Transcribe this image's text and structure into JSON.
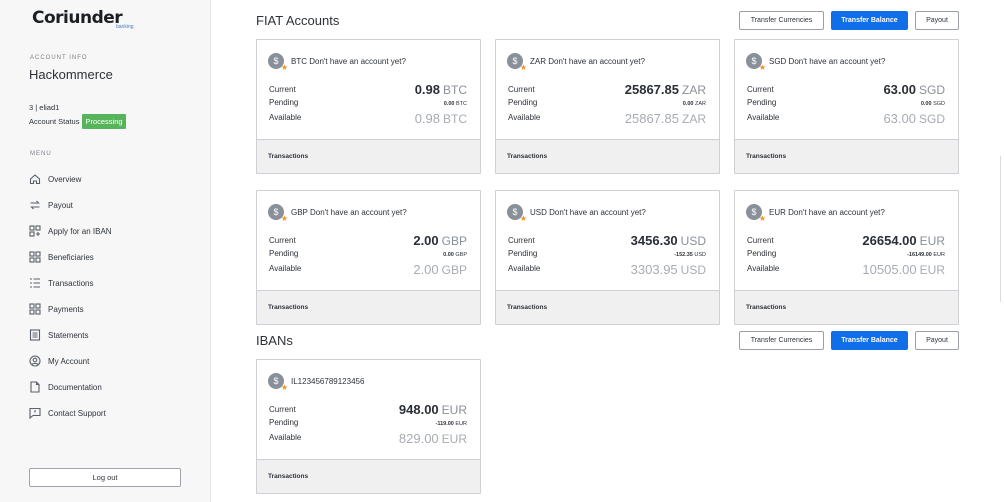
{
  "brand": {
    "logo": "Coriunder",
    "logo_sub": "banking"
  },
  "sidebar": {
    "account_info_label": "ACCOUNT INFO",
    "account_name": "Hackommerce",
    "account_id": "3 | eliad1",
    "account_status_label": "Account Status",
    "account_status": "Processing",
    "menu_label": "MENU",
    "menu": [
      {
        "label": "Overview",
        "icon": "home-icon"
      },
      {
        "label": "Payout",
        "icon": "transfer-arrows-icon"
      },
      {
        "label": "Apply for an IBAN",
        "icon": "grid-plus-icon"
      },
      {
        "label": "Beneficiaries",
        "icon": "grid-icon"
      },
      {
        "label": "Transactions",
        "icon": "list-icon"
      },
      {
        "label": "Payments",
        "icon": "grid-icon"
      },
      {
        "label": "Statements",
        "icon": "document-list-icon"
      },
      {
        "label": "My Account",
        "icon": "user-circle-icon"
      },
      {
        "label": "Documentation",
        "icon": "document-icon"
      },
      {
        "label": "Contact Support",
        "icon": "chat-icon"
      }
    ],
    "logout": "Log out"
  },
  "fiat": {
    "title": "FIAT Accounts",
    "buttons": {
      "transfer_currencies": "Transfer Currencies",
      "transfer_balance": "Transfer Balance",
      "payout": "Payout"
    },
    "labels": {
      "current": "Current",
      "pending": "Pending",
      "available": "Available",
      "transactions": "Transactions"
    },
    "cards": [
      {
        "title": "BTC Don't have an account yet?",
        "current": "0.98",
        "pending": "0.00",
        "available": "0.98",
        "currency": "BTC"
      },
      {
        "title": "ZAR Don't have an account yet?",
        "current": "25867.85",
        "pending": "0.00",
        "available": "25867.85",
        "currency": "ZAR"
      },
      {
        "title": "SGD Don't have an account yet?",
        "current": "63.00",
        "pending": "0.00",
        "available": "63.00",
        "currency": "SGD"
      },
      {
        "title": "GBP Don't have an account yet?",
        "current": "2.00",
        "pending": "0.00",
        "available": "2.00",
        "currency": "GBP"
      },
      {
        "title": "USD Don't have an account yet?",
        "current": "3456.30",
        "pending": "-152.35",
        "available": "3303.95",
        "currency": "USD"
      },
      {
        "title": "EUR Don't have an account yet?",
        "current": "26654.00",
        "pending": "-16149.00",
        "available": "10505.00",
        "currency": "EUR"
      }
    ]
  },
  "ibans": {
    "title": "IBANs",
    "buttons": {
      "transfer_currencies": "Transfer Currencies",
      "transfer_balance": "Transfer Balance",
      "payout": "Payout"
    },
    "cards": [
      {
        "title": "IL123456789123456",
        "current": "948.00",
        "pending": "-119.00",
        "available": "829.00",
        "currency": "EUR"
      }
    ]
  },
  "colors": {
    "primary": "#0f6ee8",
    "status_green": "#56b45a",
    "star": "#f0922b"
  }
}
